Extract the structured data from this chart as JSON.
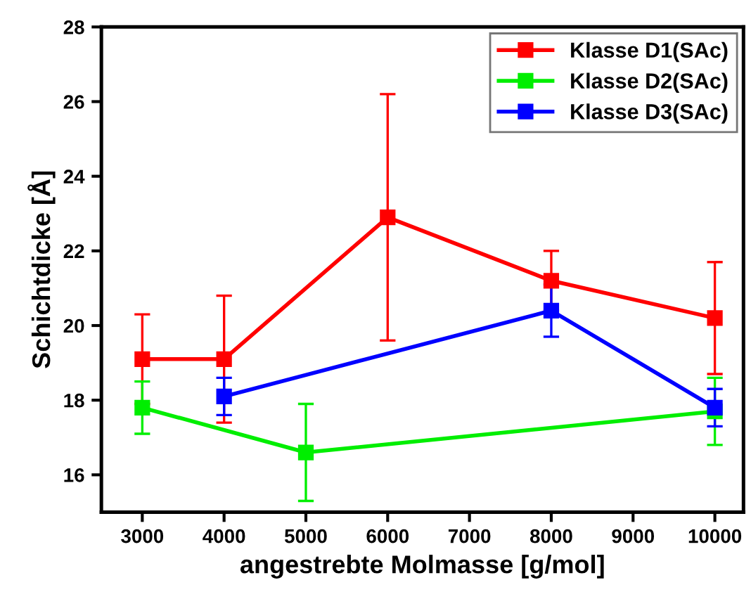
{
  "chart_data": {
    "type": "line",
    "xlabel": "angestrebte Molmasse [g/mol]",
    "ylabel": "Schichtdicke [Å]",
    "xlim": [
      2500,
      10350
    ],
    "ylim": [
      15,
      28
    ],
    "xticks": [
      3000,
      4000,
      5000,
      6000,
      7000,
      8000,
      9000,
      10000
    ],
    "yticks": [
      16,
      18,
      20,
      22,
      24,
      26,
      28
    ],
    "grid": false,
    "legend": "top right",
    "marker": "square",
    "line_style": "solid",
    "series": [
      {
        "name": "Klasse D1(SAc)",
        "color": "#ff0000",
        "x": [
          3000,
          4000,
          6000,
          8000,
          10000
        ],
        "values": [
          19.1,
          19.1,
          22.9,
          21.2,
          20.2
        ],
        "errors": [
          1.2,
          1.7,
          3.3,
          0.8,
          1.5
        ]
      },
      {
        "name": "Klasse D2(SAc)",
        "color": "#00ee00",
        "x": [
          3000,
          5000,
          10000
        ],
        "values": [
          17.8,
          16.6,
          17.7
        ],
        "errors": [
          0.7,
          1.3,
          0.9
        ]
      },
      {
        "name": "Klasse D3(SAc)",
        "color": "#0000ff",
        "x": [
          4000,
          8000,
          10000
        ],
        "values": [
          18.1,
          20.4,
          17.8
        ],
        "errors": [
          0.5,
          0.7,
          0.5
        ]
      }
    ]
  }
}
